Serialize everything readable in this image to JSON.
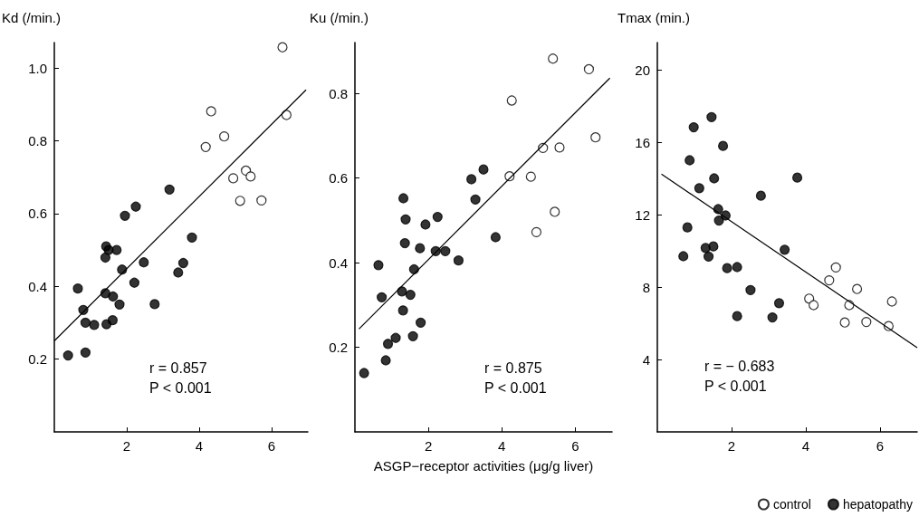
{
  "chart_data": [
    {
      "type": "scatter",
      "ylabel": "Kd (/min.)",
      "xlim": [
        0,
        7
      ],
      "xticks": [
        2,
        4,
        6
      ],
      "ylim": [
        0,
        1.07
      ],
      "yticks": [
        0.2,
        0.4,
        0.6,
        0.8,
        {
          "value": 1,
          "label": "1.0"
        }
      ],
      "grid": false,
      "legend": false,
      "marker": "circle",
      "annotations": [
        "r = 0.857",
        "P < 0.001"
      ],
      "series": [
        {
          "color": "#000000",
          "x": [
            0.38,
            0.65,
            0.8,
            0.86,
            0.86,
            1.1,
            1.41,
            1.43,
            1.5,
            1.41,
            1.44,
            1.62,
            1.61,
            1.72,
            1.8,
            1.87,
            1.95,
            2.21,
            2.25,
            2.47,
            2.77,
            3.18,
            3.42,
            3.56,
            3.8
          ],
          "values": [
            0.21,
            0.394,
            0.335,
            0.3,
            0.218,
            0.294,
            0.479,
            0.51,
            0.5,
            0.381,
            0.296,
            0.372,
            0.307,
            0.5,
            0.35,
            0.446,
            0.594,
            0.41,
            0.619,
            0.466,
            0.351,
            0.666,
            0.438,
            0.464,
            0.534
          ]
        },
        {
          "color": "#ffffff",
          "x": [
            4.18,
            4.33,
            4.69,
            4.94,
            5.13,
            5.29,
            5.42,
            5.72,
            6.3,
            6.41
          ],
          "values": [
            0.783,
            0.881,
            0.812,
            0.697,
            0.635,
            0.718,
            0.702,
            0.636,
            1.057,
            0.871
          ]
        },
        {
          "type": "line",
          "color": "#000000",
          "marker": "none",
          "x": [
            0.0,
            6.95
          ],
          "values": [
            0.25,
            0.94
          ]
        }
      ]
    },
    {
      "type": "scatter",
      "ylabel": "Ku (/min.)",
      "xlabel": "ASGP−receptor activities (μg/g liver)",
      "xlim": [
        0,
        7
      ],
      "xticks": [
        2,
        4,
        6
      ],
      "ylim": [
        0,
        0.92
      ],
      "yticks": [
        0.2,
        0.4,
        0.6,
        0.8
      ],
      "grid": false,
      "legend": false,
      "marker": "circle",
      "annotations": [
        "r = 0.875",
        "P < 0.001"
      ],
      "series": [
        {
          "color": "#000000",
          "x": [
            0.25,
            0.64,
            0.73,
            0.84,
            0.9,
            1.11,
            1.28,
            1.31,
            1.32,
            1.38,
            1.36,
            1.51,
            1.58,
            1.61,
            1.77,
            1.79,
            1.92,
            2.2,
            2.25,
            2.46,
            2.82,
            3.17,
            3.28,
            3.5,
            3.83
          ],
          "values": [
            0.139,
            0.394,
            0.318,
            0.169,
            0.208,
            0.222,
            0.332,
            0.287,
            0.552,
            0.502,
            0.446,
            0.324,
            0.226,
            0.384,
            0.434,
            0.258,
            0.49,
            0.427,
            0.508,
            0.427,
            0.405,
            0.597,
            0.549,
            0.62,
            0.46
          ]
        },
        {
          "color": "#ffffff",
          "x": [
            4.21,
            4.27,
            4.79,
            4.94,
            5.12,
            5.39,
            5.44,
            5.57,
            6.37,
            6.55
          ],
          "values": [
            0.604,
            0.783,
            0.603,
            0.472,
            0.671,
            0.882,
            0.52,
            0.672,
            0.857,
            0.696
          ]
        },
        {
          "type": "line",
          "color": "#000000",
          "marker": "none",
          "x": [
            0.11,
            6.94
          ],
          "values": [
            0.243,
            0.836
          ]
        }
      ]
    },
    {
      "type": "scatter",
      "ylabel": "Tmax (min.)",
      "xlim": [
        0,
        7
      ],
      "xticks": [
        2,
        4,
        6
      ],
      "ylim": [
        0,
        21.5
      ],
      "yticks": [
        4,
        8,
        12,
        16,
        20
      ],
      "grid": false,
      "legend": "bottom right",
      "marker": "circle",
      "annotations": [
        "r = − 0.683",
        "P < 0.001"
      ],
      "series": [
        {
          "name": "hepatopathy",
          "color": "#000000",
          "x": [
            0.7,
            0.81,
            0.87,
            0.98,
            1.13,
            1.3,
            1.38,
            1.46,
            1.51,
            1.53,
            1.64,
            1.66,
            1.77,
            1.84,
            1.88,
            2.15,
            2.15,
            2.51,
            2.79,
            3.1,
            3.28,
            3.43,
            3.77
          ],
          "values": [
            9.7,
            11.29,
            15.0,
            16.82,
            13.46,
            10.16,
            9.68,
            17.38,
            10.24,
            14.0,
            12.3,
            11.67,
            15.79,
            11.95,
            9.04,
            9.1,
            6.39,
            7.83,
            13.04,
            6.32,
            7.11,
            10.06,
            14.04
          ]
        },
        {
          "name": "control",
          "color": "#ffffff",
          "x": [
            4.09,
            4.21,
            4.63,
            4.81,
            5.05,
            5.17,
            5.38,
            5.63,
            6.23,
            6.32
          ],
          "values": [
            7.36,
            7.0,
            8.37,
            9.08,
            6.04,
            7.0,
            7.89,
            6.07,
            5.84,
            7.2
          ]
        },
        {
          "type": "line",
          "color": "#000000",
          "marker": "none",
          "x": [
            0.11,
            7.0
          ],
          "values": [
            14.24,
            4.65
          ]
        }
      ]
    }
  ]
}
